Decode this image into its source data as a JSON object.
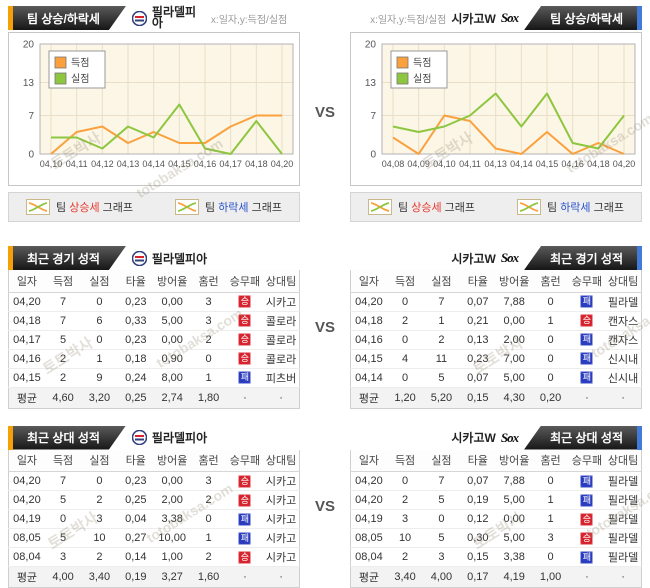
{
  "vs_label": "VS",
  "watermark": {
    "name": "토토박사",
    "domain": "totobaksa.com"
  },
  "colors": {
    "accent_left": "#f5a005",
    "accent_right": "#4379d8",
    "score_line": "#faa13e",
    "concede_line": "#8dc63f",
    "win_badge": "#d6232e",
    "loss_badge": "#2b3dbf",
    "up_word": "#e8392f",
    "down_word": "#2a52cc"
  },
  "top_section": {
    "left": {
      "tab": "팀 상승/하락세",
      "team": "필라델피아",
      "axis_hint": "x:일자,y:득점/실점"
    },
    "right": {
      "tab": "팀 상승/하락세",
      "team": "시카고W",
      "axis_hint": "x:일자,y:득점/실점"
    }
  },
  "graph_buttons": [
    {
      "pre": "팀 ",
      "word": "상승세",
      "post": " 그래프",
      "color": "#e8392f"
    },
    {
      "pre": "팀 ",
      "word": "하락세",
      "post": " 그래프",
      "color": "#2a52cc"
    }
  ],
  "chart_data": [
    {
      "type": "line",
      "title": "팀 상승/하락세 - 필라델피아",
      "x": [
        "04,10",
        "04,11",
        "04,12",
        "04,13",
        "04,14",
        "04,15",
        "04,16",
        "04,17",
        "04,18",
        "04,20"
      ],
      "series": [
        {
          "name": "득점",
          "color": "#faa13e",
          "values": [
            0,
            4,
            5,
            2,
            4,
            2,
            2,
            5,
            7,
            7
          ]
        },
        {
          "name": "실점",
          "color": "#8dc63f",
          "values": [
            3,
            3,
            1,
            5,
            3,
            9,
            1,
            0,
            6,
            0
          ]
        }
      ],
      "ylim": [
        0,
        20
      ],
      "yticks": [
        0,
        7,
        13,
        20
      ],
      "grid": true,
      "legend_position": "top-left",
      "xlabel": "일자",
      "ylabel": "득점/실점"
    },
    {
      "type": "line",
      "title": "팀 상승/하락세 - 시카고W",
      "x": [
        "04,08",
        "04,09",
        "04,10",
        "04,11",
        "04,13",
        "04,14",
        "04,15",
        "04,16",
        "04,18",
        "04,20"
      ],
      "series": [
        {
          "name": "득점",
          "color": "#faa13e",
          "values": [
            3,
            0,
            7,
            6,
            1,
            0,
            4,
            0,
            2,
            0
          ]
        },
        {
          "name": "실점",
          "color": "#8dc63f",
          "values": [
            5,
            4,
            5,
            7,
            11,
            5,
            11,
            2,
            1,
            7
          ]
        }
      ],
      "ylim": [
        0,
        20
      ],
      "yticks": [
        0,
        7,
        13,
        20
      ],
      "grid": true,
      "legend_position": "top-left",
      "xlabel": "일자",
      "ylabel": "득점/실점"
    }
  ],
  "recent_section": {
    "title": "최근 경기 성적",
    "left_team": "필라델피아",
    "right_team": "시카고W"
  },
  "h2h_section": {
    "title": "최근 상대 성적",
    "left_team": "필라델피아",
    "right_team": "시카고W"
  },
  "tables": {
    "columns": [
      "일자",
      "득점",
      "실점",
      "타율",
      "방어율",
      "홈런",
      "승무패",
      "상대팀"
    ],
    "recent_left": {
      "rows": [
        [
          "04,20",
          "7",
          "0",
          "0,23",
          "0,00",
          "3",
          "승",
          "시카고"
        ],
        [
          "04,18",
          "7",
          "6",
          "0,33",
          "5,00",
          "3",
          "승",
          "콜로라"
        ],
        [
          "04,17",
          "5",
          "0",
          "0,23",
          "0,00",
          "2",
          "승",
          "콜로라"
        ],
        [
          "04,16",
          "2",
          "1",
          "0,18",
          "0,90",
          "0",
          "승",
          "콜로라"
        ],
        [
          "04,15",
          "2",
          "9",
          "0,24",
          "8,00",
          "1",
          "패",
          "피츠버"
        ]
      ],
      "average": [
        "평균",
        "4,60",
        "3,20",
        "0,25",
        "2,74",
        "1,80",
        "·",
        "·"
      ]
    },
    "recent_right": {
      "rows": [
        [
          "04,20",
          "0",
          "7",
          "0,07",
          "7,88",
          "0",
          "패",
          "필라델"
        ],
        [
          "04,18",
          "2",
          "1",
          "0,21",
          "0,00",
          "1",
          "승",
          "캔자스"
        ],
        [
          "04,16",
          "0",
          "2",
          "0,13",
          "2,00",
          "0",
          "패",
          "캔자스"
        ],
        [
          "04,15",
          "4",
          "11",
          "0,23",
          "7,00",
          "0",
          "패",
          "신시내"
        ],
        [
          "04,14",
          "0",
          "5",
          "0,07",
          "5,00",
          "0",
          "패",
          "신시내"
        ]
      ],
      "average": [
        "평균",
        "1,20",
        "5,20",
        "0,15",
        "4,30",
        "0,20",
        "·",
        "·"
      ]
    },
    "h2h_left": {
      "rows": [
        [
          "04,20",
          "7",
          "0",
          "0,23",
          "0,00",
          "3",
          "승",
          "시카고"
        ],
        [
          "04,20",
          "5",
          "2",
          "0,25",
          "2,00",
          "2",
          "승",
          "시카고"
        ],
        [
          "04,19",
          "0",
          "3",
          "0,04",
          "3,38",
          "0",
          "패",
          "시카고"
        ],
        [
          "08,05",
          "5",
          "10",
          "0,27",
          "10,00",
          "1",
          "패",
          "시카고"
        ],
        [
          "08,04",
          "3",
          "2",
          "0,14",
          "1,00",
          "2",
          "승",
          "시카고"
        ]
      ],
      "average": [
        "평균",
        "4,00",
        "3,40",
        "0,19",
        "3,27",
        "1,60",
        "·",
        "·"
      ]
    },
    "h2h_right": {
      "rows": [
        [
          "04,20",
          "0",
          "7",
          "0,07",
          "7,88",
          "0",
          "패",
          "필라델"
        ],
        [
          "04,20",
          "2",
          "5",
          "0,19",
          "5,00",
          "1",
          "패",
          "필라델"
        ],
        [
          "04,19",
          "3",
          "0",
          "0,12",
          "0,00",
          "1",
          "승",
          "필라델"
        ],
        [
          "08,05",
          "10",
          "5",
          "0,30",
          "5,00",
          "3",
          "승",
          "필라델"
        ],
        [
          "08,04",
          "2",
          "3",
          "0,15",
          "3,38",
          "0",
          "패",
          "필라델"
        ]
      ],
      "average": [
        "평균",
        "3,40",
        "4,00",
        "0,17",
        "4,19",
        "1,00",
        "·",
        "·"
      ]
    }
  }
}
